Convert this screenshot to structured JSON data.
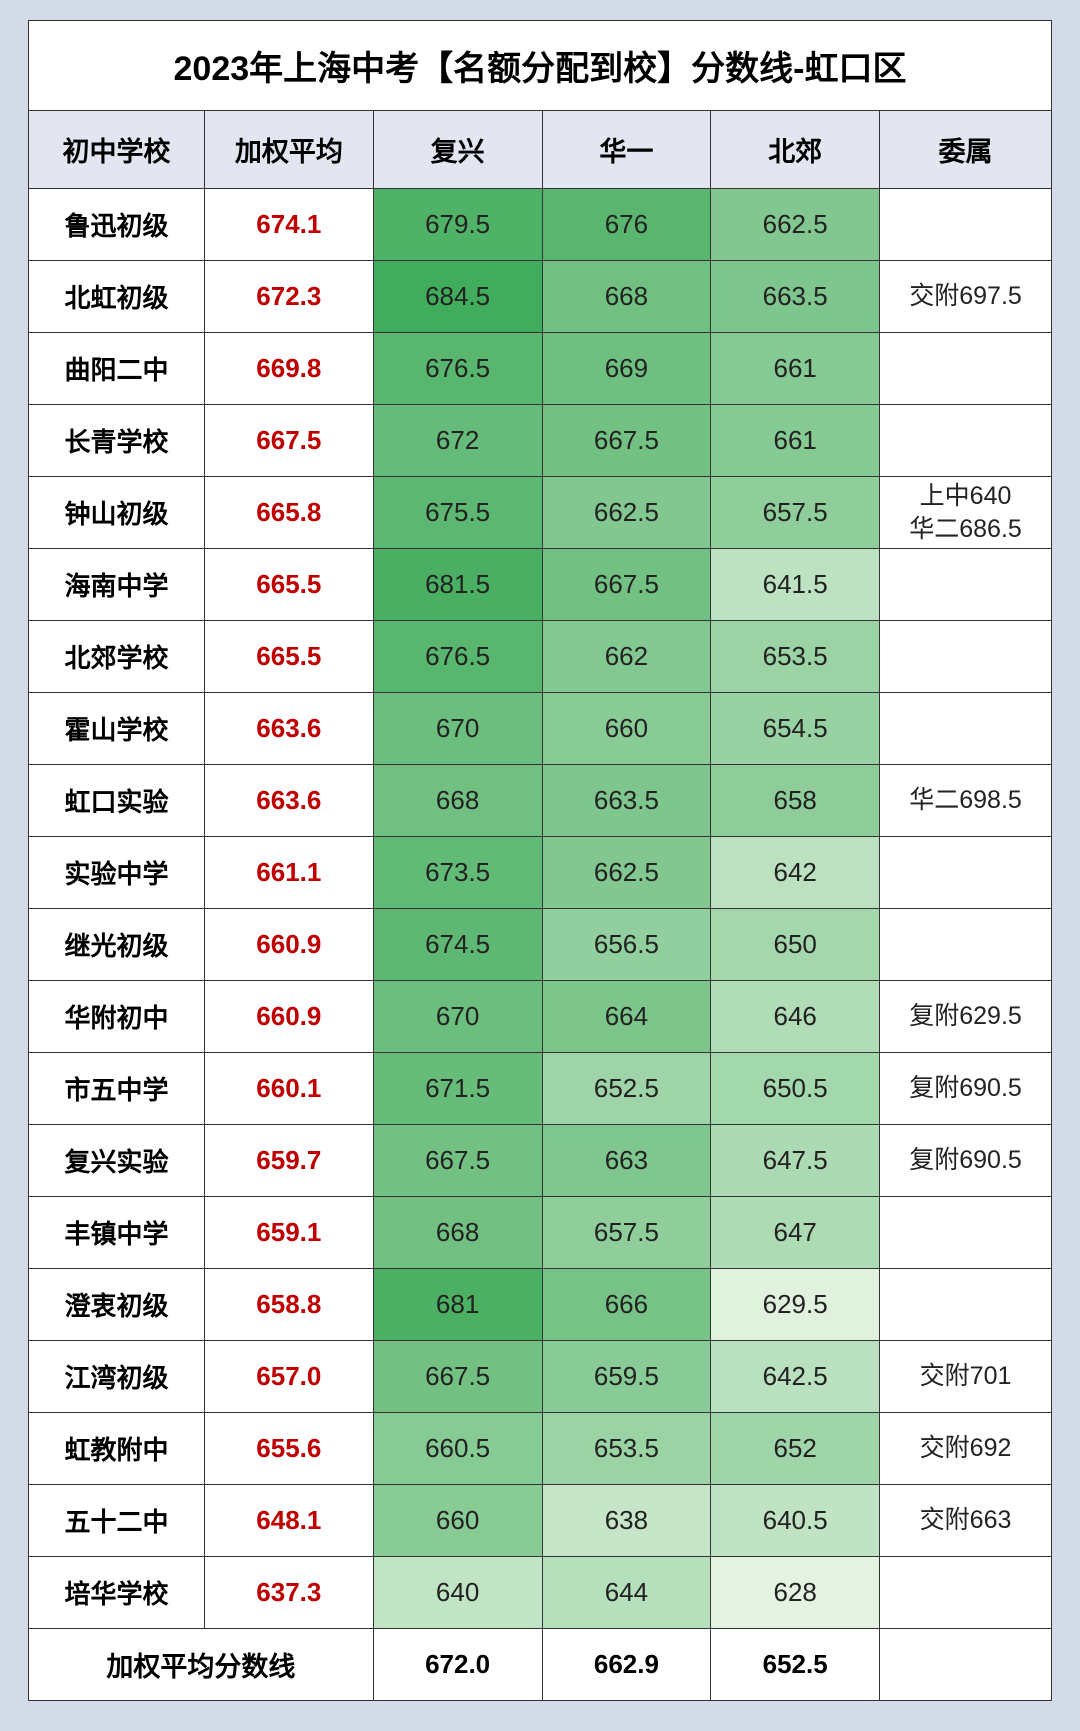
{
  "title": "2023年上海中考【名额分配到校】分数线-虹口区",
  "columns": [
    "初中学校",
    "加权平均",
    "复兴",
    "华一",
    "北郊",
    "委属"
  ],
  "footer_label": "加权平均分数线",
  "footer_values": [
    "672.0",
    "662.9",
    "652.5",
    ""
  ],
  "heatmap": {
    "min": 628,
    "max": 685,
    "low_color": [
      228,
      243,
      225
    ],
    "high_color": [
      64,
      171,
      90
    ]
  },
  "col_widths_pct": [
    17.2,
    16.5,
    16.5,
    16.5,
    16.5,
    16.8
  ],
  "text_colors": {
    "title": "#000000",
    "header": "#000000",
    "school": "#000000",
    "weighted": "#c00000",
    "score": "#222222",
    "affiliated": "#222222"
  },
  "rows": [
    {
      "school": "鲁迅初级",
      "weighted": "674.1",
      "scores": [
        679.5,
        676,
        662.5
      ],
      "affiliated": ""
    },
    {
      "school": "北虹初级",
      "weighted": "672.3",
      "scores": [
        684.5,
        668,
        663.5
      ],
      "affiliated": "交附697.5"
    },
    {
      "school": "曲阳二中",
      "weighted": "669.8",
      "scores": [
        676.5,
        669,
        661
      ],
      "affiliated": ""
    },
    {
      "school": "长青学校",
      "weighted": "667.5",
      "scores": [
        672,
        667.5,
        661
      ],
      "affiliated": ""
    },
    {
      "school": "钟山初级",
      "weighted": "665.8",
      "scores": [
        675.5,
        662.5,
        657.5
      ],
      "affiliated": "上中640\n华二686.5"
    },
    {
      "school": "海南中学",
      "weighted": "665.5",
      "scores": [
        681.5,
        667.5,
        641.5
      ],
      "affiliated": ""
    },
    {
      "school": "北郊学校",
      "weighted": "665.5",
      "scores": [
        676.5,
        662,
        653.5
      ],
      "affiliated": ""
    },
    {
      "school": "霍山学校",
      "weighted": "663.6",
      "scores": [
        670,
        660,
        654.5
      ],
      "affiliated": ""
    },
    {
      "school": "虹口实验",
      "weighted": "663.6",
      "scores": [
        668,
        663.5,
        658
      ],
      "affiliated": "华二698.5"
    },
    {
      "school": "实验中学",
      "weighted": "661.1",
      "scores": [
        673.5,
        662.5,
        642
      ],
      "affiliated": ""
    },
    {
      "school": "继光初级",
      "weighted": "660.9",
      "scores": [
        674.5,
        656.5,
        650
      ],
      "affiliated": ""
    },
    {
      "school": "华附初中",
      "weighted": "660.9",
      "scores": [
        670,
        664,
        646
      ],
      "affiliated": "复附629.5"
    },
    {
      "school": "市五中学",
      "weighted": "660.1",
      "scores": [
        671.5,
        652.5,
        650.5
      ],
      "affiliated": "复附690.5"
    },
    {
      "school": "复兴实验",
      "weighted": "659.7",
      "scores": [
        667.5,
        663,
        647.5
      ],
      "affiliated": "复附690.5"
    },
    {
      "school": "丰镇中学",
      "weighted": "659.1",
      "scores": [
        668,
        657.5,
        647
      ],
      "affiliated": ""
    },
    {
      "school": "澄衷初级",
      "weighted": "658.8",
      "scores": [
        681,
        666,
        629.5
      ],
      "affiliated": ""
    },
    {
      "school": "江湾初级",
      "weighted": "657.0",
      "scores": [
        667.5,
        659.5,
        642.5
      ],
      "affiliated": "交附701"
    },
    {
      "school": "虹教附中",
      "weighted": "655.6",
      "scores": [
        660.5,
        653.5,
        652
      ],
      "affiliated": "交附692"
    },
    {
      "school": "五十二中",
      "weighted": "648.1",
      "scores": [
        660,
        638,
        640.5
      ],
      "affiliated": "交附663"
    },
    {
      "school": "培华学校",
      "weighted": "637.3",
      "scores": [
        640,
        644,
        628
      ],
      "affiliated": ""
    }
  ]
}
